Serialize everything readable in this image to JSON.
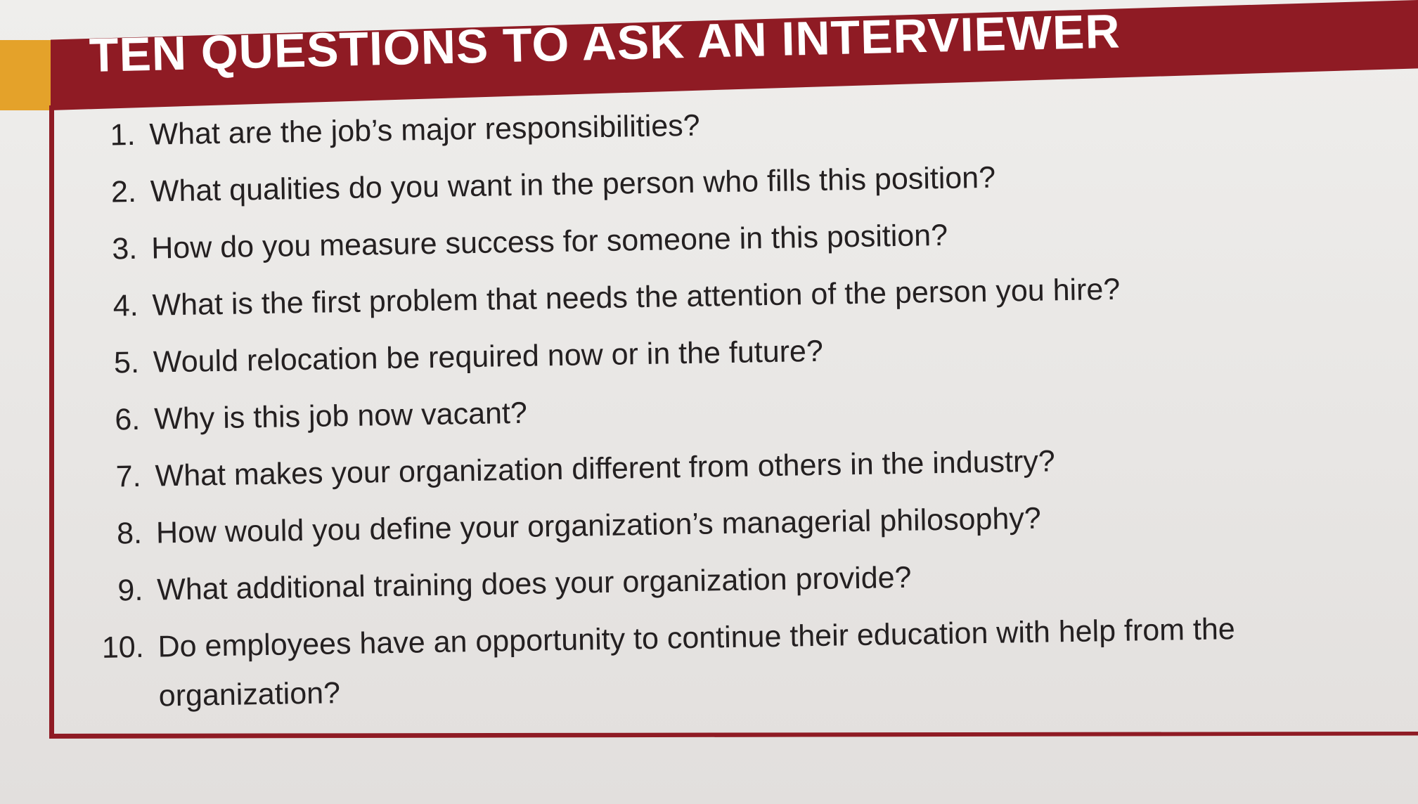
{
  "header": {
    "title": "TEN QUESTIONS TO ASK AN INTERVIEWER"
  },
  "questions": [
    {
      "number": "1.",
      "text": "What are the job’s major responsibilities?"
    },
    {
      "number": "2.",
      "text": "What qualities do you want in the person who fills this position?"
    },
    {
      "number": "3.",
      "text": "How do you measure success for someone in this position?"
    },
    {
      "number": "4.",
      "text": "What is the first problem that needs the attention of the person you hire?"
    },
    {
      "number": "5.",
      "text": "Would relocation be required now or in the future?"
    },
    {
      "number": "6.",
      "text": "Why is this job now vacant?"
    },
    {
      "number": "7.",
      "text": "What makes your organization different from others in the industry?"
    },
    {
      "number": "8.",
      "text": "How would you define your organization’s managerial philosophy?"
    },
    {
      "number": "9.",
      "text": "What additional training does your organization provide?"
    },
    {
      "number": "10.",
      "text": "Do employees have an opportunity to continue their education with help from the organization?"
    }
  ],
  "colors": {
    "header_bar": "#8f1b24",
    "accent_tab": "#e4a22a",
    "page": "#ebe9e7",
    "text": "#242021"
  }
}
